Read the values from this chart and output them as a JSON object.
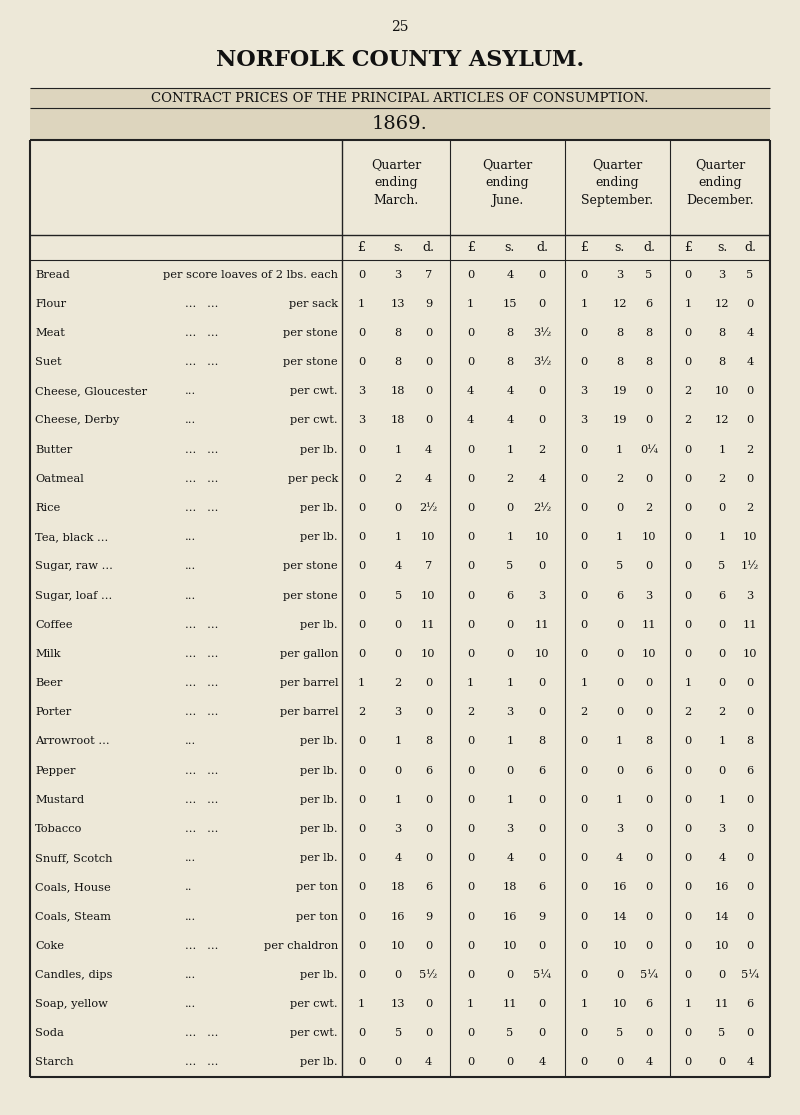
{
  "page_number": "25",
  "title1": "NORFOLK COUNTY ASYLUM.",
  "title2": "CONTRACT PRICES OF THE PRINCIPAL ARTICLES OF CONSUMPTION.",
  "year": "1869.",
  "bg_color": "#ede8d8",
  "col_headers": [
    "Quarter\nending\nMarch.",
    "Quarter\nending\nJune.",
    "Quarter\nending\nSeptember.",
    "Quarter\nending\nDecember."
  ],
  "rows": [
    [
      "Bread",
      "per score loaves of 2 lbs. each",
      "0",
      "3",
      "7",
      "0",
      "4",
      "0",
      "0",
      "3",
      "5",
      "0",
      "3",
      "5"
    ],
    [
      "Flour",
      "...   ...   per sack",
      "1",
      "13",
      "9",
      "1",
      "15",
      "0",
      "1",
      "12",
      "6",
      "1",
      "12",
      "0"
    ],
    [
      "Meat",
      "...   ...   per stone",
      "0",
      "8",
      "0",
      "0",
      "8",
      "3½",
      "0",
      "8",
      "8",
      "0",
      "8",
      "4"
    ],
    [
      "Suet",
      "...   ...   per stone",
      "0",
      "8",
      "0",
      "0",
      "8",
      "3½",
      "0",
      "8",
      "8",
      "0",
      "8",
      "4"
    ],
    [
      "Cheese, Gloucester",
      "...   per cwt.",
      "3",
      "18",
      "0",
      "4",
      "4",
      "0",
      "3",
      "19",
      "0",
      "2",
      "10",
      "0"
    ],
    [
      "Cheese, Derby",
      "...   per cwt.",
      "3",
      "18",
      "0",
      "4",
      "4",
      "0",
      "3",
      "19",
      "0",
      "2",
      "12",
      "0"
    ],
    [
      "Butter",
      "...   ...   per lb.",
      "0",
      "1",
      "4",
      "0",
      "1",
      "2",
      "0",
      "1",
      "0¼",
      "0",
      "1",
      "2"
    ],
    [
      "Oatmeal",
      "...   ...   per peck",
      "0",
      "2",
      "4",
      "0",
      "2",
      "4",
      "0",
      "2",
      "0",
      "0",
      "2",
      "0"
    ],
    [
      "Rice",
      "...   ...   per lb.",
      "0",
      "0",
      "2½",
      "0",
      "0",
      "2½",
      "0",
      "0",
      "2",
      "0",
      "0",
      "2"
    ],
    [
      "Tea, black ...",
      "...   per lb.",
      "0",
      "1",
      "10",
      "0",
      "1",
      "10",
      "0",
      "1",
      "10",
      "0",
      "1",
      "10"
    ],
    [
      "Sugar, raw ...",
      "...   per stone",
      "0",
      "4",
      "7",
      "0",
      "5",
      "0",
      "0",
      "5",
      "0",
      "0",
      "5",
      "1½"
    ],
    [
      "Sugar, loaf ...",
      "...   per stone",
      "0",
      "5",
      "10",
      "0",
      "6",
      "3",
      "0",
      "6",
      "3",
      "0",
      "6",
      "3"
    ],
    [
      "Coffee",
      "...   ...   per lb.",
      "0",
      "0",
      "11",
      "0",
      "0",
      "11",
      "0",
      "0",
      "11",
      "0",
      "0",
      "11"
    ],
    [
      "Milk",
      "...   ...   per gallon",
      "0",
      "0",
      "10",
      "0",
      "0",
      "10",
      "0",
      "0",
      "10",
      "0",
      "0",
      "10"
    ],
    [
      "Beer",
      "...   ...   per barrel",
      "1",
      "2",
      "0",
      "1",
      "1",
      "0",
      "1",
      "0",
      "0",
      "1",
      "0",
      "0"
    ],
    [
      "Porter",
      "...   ...   per barrel",
      "2",
      "3",
      "0",
      "2",
      "3",
      "0",
      "2",
      "0",
      "0",
      "2",
      "2",
      "0"
    ],
    [
      "Arrowroot ...",
      "...   per lb.",
      "0",
      "1",
      "8",
      "0",
      "1",
      "8",
      "0",
      "1",
      "8",
      "0",
      "1",
      "8"
    ],
    [
      "Pepper",
      "...   ...   per lb.",
      "0",
      "0",
      "6",
      "0",
      "0",
      "6",
      "0",
      "0",
      "6",
      "0",
      "0",
      "6"
    ],
    [
      "Mustard",
      "...   ...   per lb.",
      "0",
      "1",
      "0",
      "0",
      "1",
      "0",
      "0",
      "1",
      "0",
      "0",
      "1",
      "0"
    ],
    [
      "Tobacco",
      "...   ...   per lb.",
      "0",
      "3",
      "0",
      "0",
      "3",
      "0",
      "0",
      "3",
      "0",
      "0",
      "3",
      "0"
    ],
    [
      "Snuff, Scotch",
      "...   per lb.",
      "0",
      "4",
      "0",
      "0",
      "4",
      "0",
      "0",
      "4",
      "0",
      "0",
      "4",
      "0"
    ],
    [
      "Coals, House",
      "..    per ton",
      "0",
      "18",
      "6",
      "0",
      "18",
      "6",
      "0",
      "16",
      "0",
      "0",
      "16",
      "0"
    ],
    [
      "Coals, Steam",
      "...   per ton",
      "0",
      "16",
      "9",
      "0",
      "16",
      "9",
      "0",
      "14",
      "0",
      "0",
      "14",
      "0"
    ],
    [
      "Coke",
      "...   ...   per chaldron",
      "0",
      "10",
      "0",
      "0",
      "10",
      "0",
      "0",
      "10",
      "0",
      "0",
      "10",
      "0"
    ],
    [
      "Candles, dips",
      "...   per lb.",
      "0",
      "0",
      "5½",
      "0",
      "0",
      "5¼",
      "0",
      "0",
      "5¼",
      "0",
      "0",
      "5¼"
    ],
    [
      "Soap, yellow",
      "...   per cwt.",
      "1",
      "13",
      "0",
      "1",
      "11",
      "0",
      "1",
      "10",
      "6",
      "1",
      "11",
      "6"
    ],
    [
      "Soda",
      "...   ...   per cwt.",
      "0",
      "5",
      "0",
      "0",
      "5",
      "0",
      "0",
      "5",
      "0",
      "0",
      "5",
      "0"
    ],
    [
      "Starch",
      "...   ...   per lb.",
      "0",
      "0",
      "4",
      "0",
      "0",
      "4",
      "0",
      "0",
      "4",
      "0",
      "0",
      "4"
    ]
  ]
}
